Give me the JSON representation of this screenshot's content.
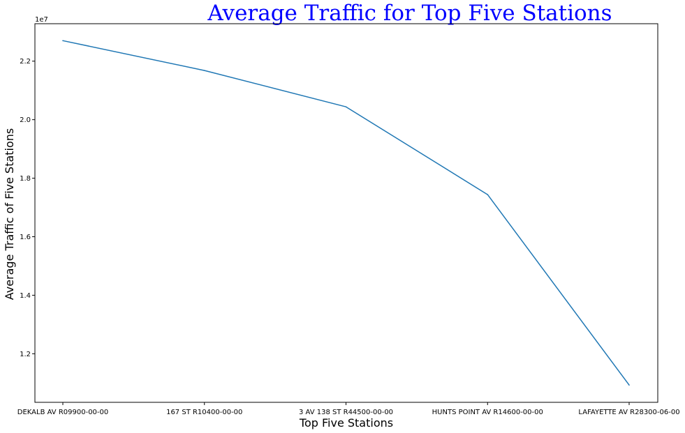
{
  "chart_data": {
    "type": "line",
    "title": "Average Traffic for Top Five Stations",
    "xlabel": "Top Five Stations",
    "ylabel": "Average Traffic of Five Stations",
    "y_offset_label": "1e7",
    "categories": [
      "DEKALB AV R09900-00-00",
      "167 ST R10400-00-00",
      "3 AV 138 ST R44500-00-00",
      "HUNTS POINT AV R14600-00-00",
      "LAFAYETTE AV R28300-06-00"
    ],
    "series": [
      {
        "values": [
          22700000,
          21680000,
          20440000,
          17440000,
          10930000
        ]
      }
    ],
    "yticks": [
      1.2,
      1.4,
      1.6,
      1.8,
      2.0,
      2.2
    ],
    "ytick_scale": 10000000,
    "ylim": [
      10340000,
      23280000
    ],
    "grid": false,
    "colors": {
      "line": "#1f77b4",
      "title": "#0000ff"
    }
  }
}
